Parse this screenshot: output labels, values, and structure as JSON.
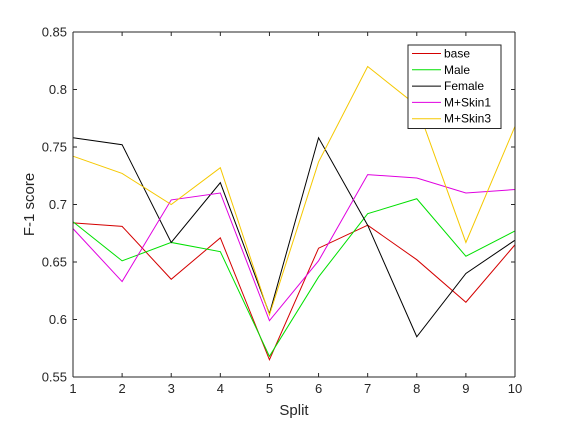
{
  "chart_data": {
    "type": "line",
    "title": "",
    "xlabel": "Split",
    "ylabel": "F-1 score",
    "xlim": [
      1,
      10
    ],
    "ylim": [
      0.55,
      0.85
    ],
    "x": [
      1,
      2,
      3,
      4,
      5,
      6,
      7,
      8,
      9,
      10
    ],
    "xticks": [
      "1",
      "2",
      "3",
      "4",
      "5",
      "6",
      "7",
      "8",
      "9",
      "10"
    ],
    "yticks": [
      "0.55",
      "0.6",
      "0.65",
      "0.7",
      "0.75",
      "0.8",
      "0.85"
    ],
    "grid": false,
    "legend_position": "top-right",
    "series": [
      {
        "name": "base",
        "color": "#d40000",
        "values": [
          0.684,
          0.681,
          0.635,
          0.671,
          0.565,
          0.662,
          0.682,
          0.652,
          0.615,
          0.665
        ]
      },
      {
        "name": "Male",
        "color": "#00e000",
        "values": [
          0.685,
          0.651,
          0.667,
          0.659,
          0.568,
          0.637,
          0.692,
          0.705,
          0.655,
          0.677
        ]
      },
      {
        "name": "Female",
        "color": "#000000",
        "values": [
          0.758,
          0.752,
          0.667,
          0.719,
          0.605,
          0.758,
          0.682,
          0.585,
          0.64,
          0.669
        ]
      },
      {
        "name": "M+Skin1",
        "color": "#e000e0",
        "values": [
          0.679,
          0.633,
          0.704,
          0.71,
          0.599,
          0.651,
          0.726,
          0.723,
          0.71,
          0.713
        ]
      },
      {
        "name": "M+Skin3",
        "color": "#f5c800",
        "values": [
          0.742,
          0.727,
          0.7,
          0.732,
          0.604,
          0.737,
          0.82,
          0.786,
          0.667,
          0.768
        ]
      }
    ]
  }
}
